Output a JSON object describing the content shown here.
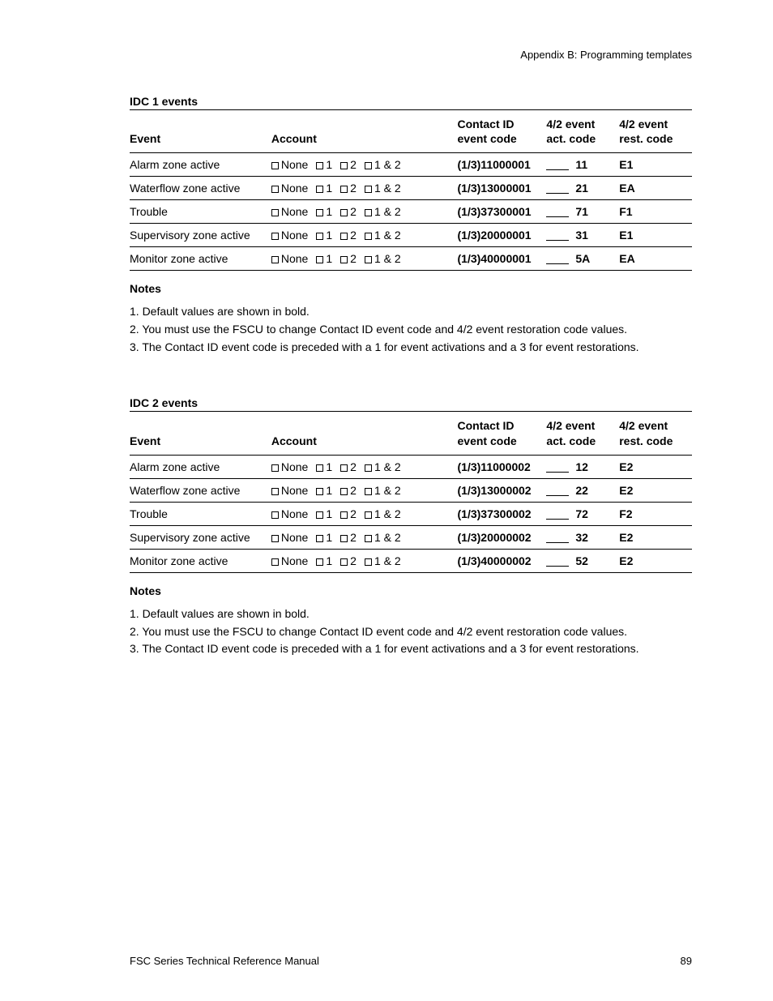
{
  "header": {
    "appendix": "Appendix B: Programming templates"
  },
  "account_options": [
    "None",
    "1",
    "2",
    "1 & 2"
  ],
  "columns": {
    "event": "Event",
    "account": "Account",
    "contact": "Contact ID\nevent code",
    "act": "4/2 event\nact. code",
    "rest": "4/2 event\nrest. code"
  },
  "tables": [
    {
      "title": "IDC 1 events",
      "rows": [
        {
          "event": "Alarm zone active",
          "contact": "(1/3)11000001",
          "act": "11",
          "rest": "E1"
        },
        {
          "event": "Waterflow zone active",
          "contact": "(1/3)13000001",
          "act": "21",
          "rest": "EA"
        },
        {
          "event": "Trouble",
          "contact": "(1/3)37300001",
          "act": "71",
          "rest": "F1"
        },
        {
          "event": "Supervisory zone active",
          "contact": "(1/3)20000001",
          "act": "31",
          "rest": "E1"
        },
        {
          "event": "Monitor zone active",
          "contact": "(1/3)40000001",
          "act": "5A",
          "rest": "EA"
        }
      ]
    },
    {
      "title": "IDC 2 events",
      "rows": [
        {
          "event": "Alarm zone active",
          "contact": "(1/3)11000002",
          "act": "12",
          "rest": "E2"
        },
        {
          "event": "Waterflow zone active",
          "contact": "(1/3)13000002",
          "act": "22",
          "rest": "E2"
        },
        {
          "event": "Trouble",
          "contact": "(1/3)37300002",
          "act": "72",
          "rest": "F2"
        },
        {
          "event": "Supervisory zone active",
          "contact": "(1/3)20000002",
          "act": "32",
          "rest": "E2"
        },
        {
          "event": "Monitor zone active",
          "contact": "(1/3)40000002",
          "act": "52",
          "rest": "E2"
        }
      ]
    }
  ],
  "notes": {
    "heading": "Notes",
    "items": [
      "1. Default values are shown in bold.",
      "2. You must use the FSCU to change Contact ID event code and 4/2 event restoration code values.",
      "3. The Contact ID event code is preceded with a 1 for event activations and a 3 for event restorations."
    ]
  },
  "footer": {
    "manual": "FSC Series Technical Reference Manual",
    "page": "89"
  }
}
